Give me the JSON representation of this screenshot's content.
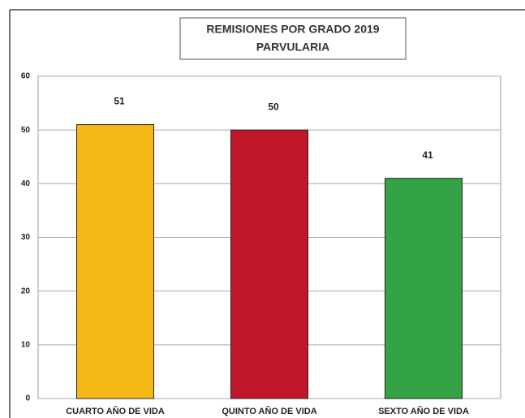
{
  "chart_data": {
    "type": "bar",
    "title": "REMISIONES POR GRADO 2019",
    "subtitle": "PARVULARIA",
    "categories": [
      "CUARTO AÑO DE VIDA",
      "QUINTO AÑO DE VIDA",
      "SEXTO AÑO DE VIDA"
    ],
    "values": [
      51,
      50,
      41
    ],
    "colors": [
      "#f5b915",
      "#c0182a",
      "#33a345"
    ],
    "ylim": [
      0,
      60
    ],
    "yticks": [
      0,
      10,
      20,
      30,
      40,
      50,
      60
    ],
    "grid": true
  }
}
